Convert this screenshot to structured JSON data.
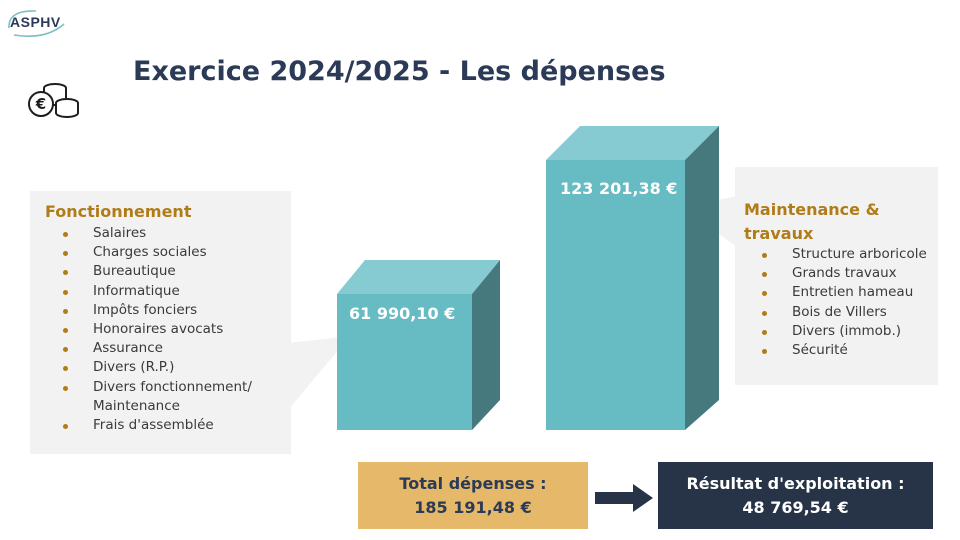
{
  "logo": {
    "text": "ASPHV"
  },
  "title": "Exercice 2024/2025 - Les dépenses",
  "left_panel": {
    "title": "Fonctionnement",
    "items": [
      "Salaires",
      "Charges sociales",
      "Bureautique",
      "Informatique",
      "Impôts fonciers",
      "Honoraires avocats",
      "Assurance",
      "Divers (R.P.)",
      "Divers fonctionnement/",
      "Maintenance",
      "Frais d'assemblée"
    ]
  },
  "right_panel": {
    "title": "Maintenance & travaux",
    "items": [
      "Structure arboricole",
      "Grands travaux",
      "Entretien hameau",
      "Bois de Villers",
      "Divers (immob.)",
      "Sécurité"
    ]
  },
  "bars": [
    {
      "label": "61 990,10 €",
      "value": 61990.1
    },
    {
      "label": "123 201,38 €",
      "value": 123201.38
    }
  ],
  "total": {
    "line1": "Total dépenses :",
    "line2": "185 191,48 €"
  },
  "result": {
    "line1": "Résultat d'exploitation :",
    "line2": "48 769,54 €"
  },
  "colors": {
    "title": "#2a3a57",
    "accent": "#b07c18",
    "bar_front": "#67bcc4",
    "bar_top": "#86cbd1",
    "bar_side": "#45797d",
    "panel_bg": "#f2f2f2",
    "total_bg": "#e6b96a",
    "result_bg": "#273447"
  },
  "icons": {
    "logo": "asphv-swoosh-logo",
    "coins": "euro-coins-icon",
    "arrow": "right-arrow-icon"
  }
}
